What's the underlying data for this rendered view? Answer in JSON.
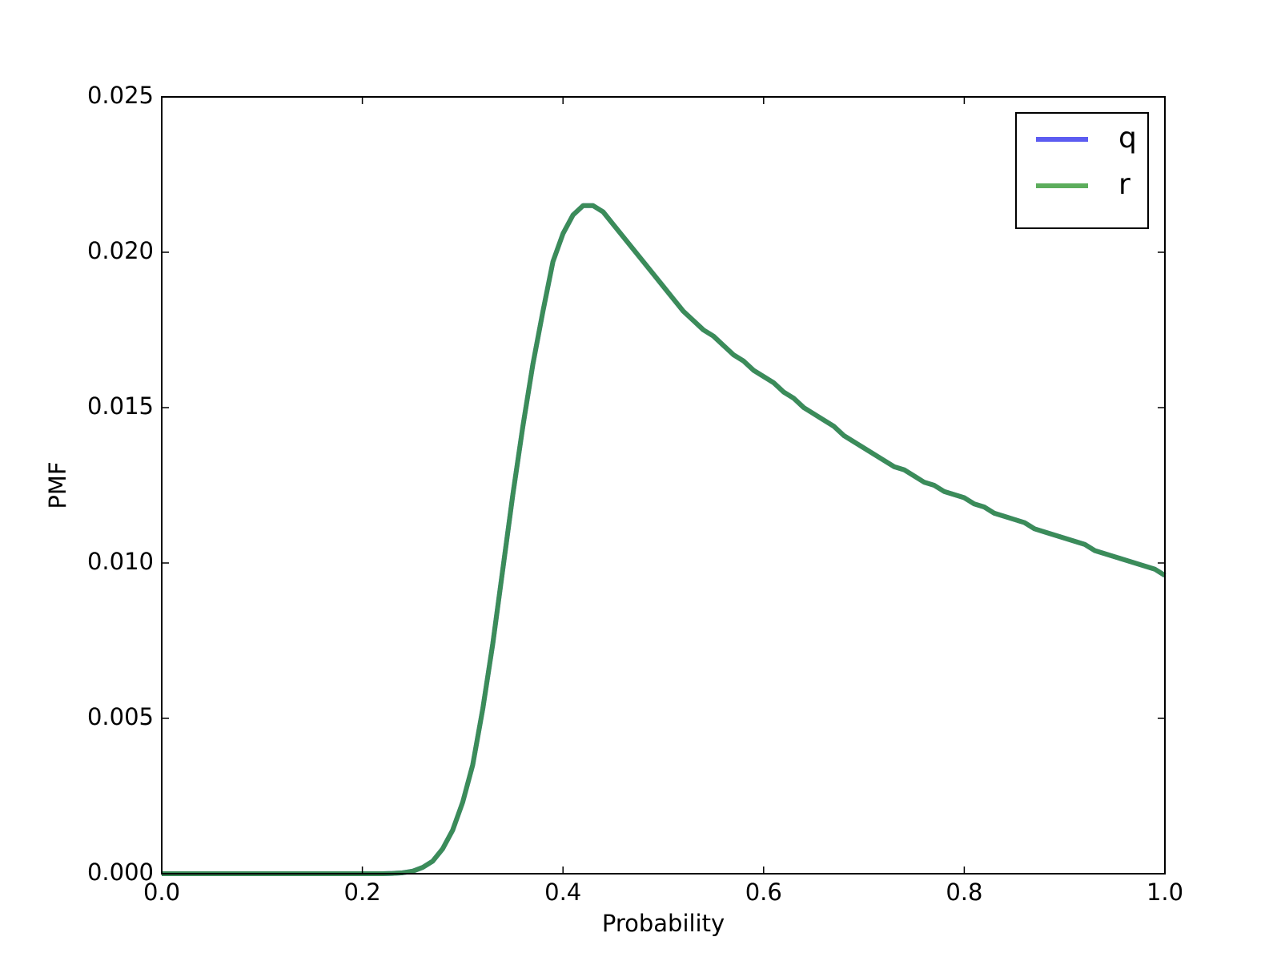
{
  "chart_data": {
    "type": "line",
    "xlabel": "Probability",
    "ylabel": "PMF",
    "x": [
      0.0,
      0.01,
      0.02,
      0.03,
      0.04,
      0.05,
      0.06,
      0.07,
      0.08,
      0.09,
      0.1,
      0.11,
      0.12,
      0.13,
      0.14,
      0.15,
      0.16,
      0.17,
      0.18,
      0.19,
      0.2,
      0.21,
      0.22,
      0.23,
      0.24,
      0.25,
      0.26,
      0.27,
      0.28,
      0.29,
      0.3,
      0.31,
      0.32,
      0.33,
      0.34,
      0.35,
      0.36,
      0.37,
      0.38,
      0.39,
      0.4,
      0.41,
      0.42,
      0.43,
      0.44,
      0.45,
      0.46,
      0.47,
      0.48,
      0.49,
      0.5,
      0.51,
      0.52,
      0.53,
      0.54,
      0.55,
      0.56,
      0.57,
      0.58,
      0.59,
      0.6,
      0.61,
      0.62,
      0.63,
      0.64,
      0.65,
      0.66,
      0.67,
      0.68,
      0.69,
      0.7,
      0.71,
      0.72,
      0.73,
      0.74,
      0.75,
      0.76,
      0.77,
      0.78,
      0.79,
      0.8,
      0.81,
      0.82,
      0.83,
      0.84,
      0.85,
      0.86,
      0.87,
      0.88,
      0.89,
      0.9,
      0.91,
      0.92,
      0.93,
      0.94,
      0.95,
      0.96,
      0.97,
      0.98,
      0.99,
      1.0
    ],
    "series": [
      {
        "name": "q",
        "color": "#3333ee",
        "values": [
          0,
          0,
          0,
          0,
          0,
          0,
          0,
          0,
          0,
          0,
          0,
          0,
          0,
          0,
          0,
          0,
          0,
          0,
          0,
          0,
          0,
          0,
          0,
          1e-05,
          3e-05,
          8e-05,
          0.0002,
          0.0004,
          0.0008,
          0.0014,
          0.0023,
          0.0035,
          0.0053,
          0.0074,
          0.0098,
          0.0122,
          0.0144,
          0.0164,
          0.0181,
          0.0197,
          0.0206,
          0.0212,
          0.0215,
          0.0215,
          0.0213,
          0.0209,
          0.0205,
          0.0201,
          0.0197,
          0.0193,
          0.0189,
          0.0185,
          0.0181,
          0.0178,
          0.0175,
          0.0173,
          0.017,
          0.0167,
          0.0165,
          0.0162,
          0.016,
          0.0158,
          0.0155,
          0.0153,
          0.015,
          0.0148,
          0.0146,
          0.0144,
          0.0141,
          0.0139,
          0.0137,
          0.0135,
          0.0133,
          0.0131,
          0.013,
          0.0128,
          0.0126,
          0.0125,
          0.0123,
          0.0122,
          0.0121,
          0.0119,
          0.0118,
          0.0116,
          0.0115,
          0.0114,
          0.0113,
          0.0111,
          0.011,
          0.0109,
          0.0108,
          0.0107,
          0.0106,
          0.0104,
          0.0103,
          0.0102,
          0.0101,
          0.01,
          0.0099,
          0.0098,
          0.0096
        ]
      },
      {
        "name": "r",
        "color": "#339933",
        "values": [
          0,
          0,
          0,
          0,
          0,
          0,
          0,
          0,
          0,
          0,
          0,
          0,
          0,
          0,
          0,
          0,
          0,
          0,
          0,
          0,
          0,
          0,
          0,
          1e-05,
          3e-05,
          8e-05,
          0.0002,
          0.0004,
          0.0008,
          0.0014,
          0.0023,
          0.0035,
          0.0053,
          0.0074,
          0.0098,
          0.0122,
          0.0144,
          0.0164,
          0.0181,
          0.0197,
          0.0206,
          0.0212,
          0.0215,
          0.0215,
          0.0213,
          0.0209,
          0.0205,
          0.0201,
          0.0197,
          0.0193,
          0.0189,
          0.0185,
          0.0181,
          0.0178,
          0.0175,
          0.0173,
          0.017,
          0.0167,
          0.0165,
          0.0162,
          0.016,
          0.0158,
          0.0155,
          0.0153,
          0.015,
          0.0148,
          0.0146,
          0.0144,
          0.0141,
          0.0139,
          0.0137,
          0.0135,
          0.0133,
          0.0131,
          0.013,
          0.0128,
          0.0126,
          0.0125,
          0.0123,
          0.0122,
          0.0121,
          0.0119,
          0.0118,
          0.0116,
          0.0115,
          0.0114,
          0.0113,
          0.0111,
          0.011,
          0.0109,
          0.0108,
          0.0107,
          0.0106,
          0.0104,
          0.0103,
          0.0102,
          0.0101,
          0.01,
          0.0099,
          0.0098,
          0.0096
        ]
      }
    ],
    "xlim": [
      0,
      1
    ],
    "ylim": [
      0,
      0.025
    ],
    "xticks": [
      {
        "value": 0,
        "label": "0.0"
      },
      0.2,
      0.4,
      0.6,
      0.8,
      {
        "value": 1,
        "label": "1.0"
      }
    ],
    "yticks": [
      {
        "value": 0,
        "label": "0.000"
      },
      0.005,
      {
        "value": 0.01,
        "label": "0.010"
      },
      0.015,
      {
        "value": 0.02,
        "label": "0.020"
      },
      0.025
    ],
    "grid": false,
    "legend": "upper right"
  }
}
